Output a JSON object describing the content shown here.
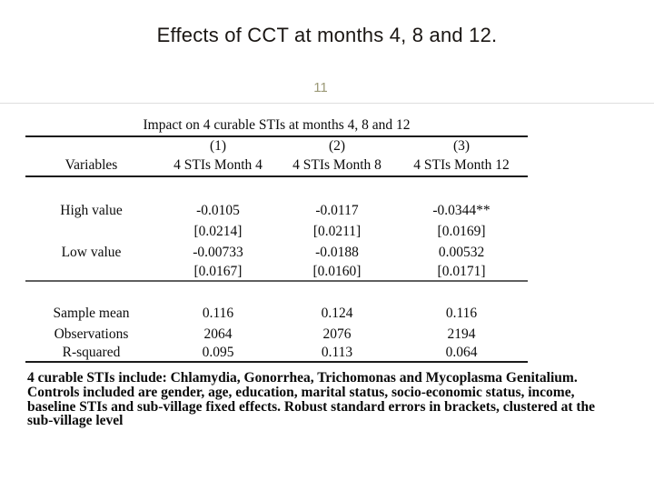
{
  "slide": {
    "title": "Effects of CCT at months 4, 8 and 12.",
    "page_number": "11"
  },
  "table": {
    "caption": "Impact on 4 curable STIs at months 4, 8 and 12",
    "col_numbers": [
      "(1)",
      "(2)",
      "(3)"
    ],
    "headers": [
      "Variables",
      "4 STIs Month 4",
      "4 STIs Month 8",
      "4 STIs Month 12"
    ],
    "body_rows": [
      {
        "label": "High value",
        "values": [
          "-0.0105",
          "-0.0117",
          "-0.0344**"
        ]
      },
      {
        "label": "",
        "values": [
          "[0.0214]",
          "[0.0211]",
          "[0.0169]"
        ]
      },
      {
        "label": "Low value",
        "values": [
          "-0.00733",
          "-0.0188",
          "0.00532"
        ]
      },
      {
        "label": "",
        "values": [
          "[0.0167]",
          "[0.0160]",
          "[0.0171]"
        ]
      }
    ],
    "summary_rows": [
      {
        "label": "Sample mean",
        "values": [
          "0.116",
          "0.124",
          "0.116"
        ]
      },
      {
        "label": "Observations",
        "values": [
          "2064",
          "2076",
          "2194"
        ]
      },
      {
        "label": "R-squared",
        "values": [
          "0.095",
          "0.113",
          "0.064"
        ]
      }
    ]
  },
  "footnote": {
    "lines": [
      "4 curable STIs include: Chlamydia, Gonorrhea, Trichomonas and Mycoplasma Genitalium.",
      "Controls included are gender, age, education, marital status, socio-economic status, income,",
      "baseline STIs and sub-village fixed effects. Robust standard errors in brackets, clustered at the",
      "sub-village level"
    ]
  },
  "colors": {
    "title_text": "#1a1613",
    "page_number_text": "#9c9a78",
    "table_rule_dark": "#1b1b1b",
    "table_rule_gray": "#5f5f5f",
    "scan_edge": "#dedede"
  }
}
